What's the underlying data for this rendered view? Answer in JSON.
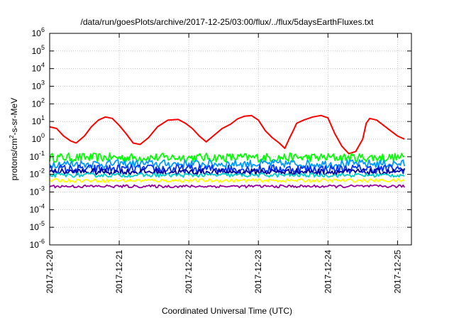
{
  "chart_data": {
    "type": "line",
    "title": "/data/run/goesPlots/archive/2017-12-25/03:00/flux/../flux/5daysEarthFluxes.txt",
    "xlabel": "Coordinated Universal Time (UTC)",
    "ylabel": {
      "pre": "protons/cm",
      "sup": "2",
      "post": "-s-sr-MeV"
    },
    "yscale": "log",
    "ylim": [
      1e-06,
      1000000.0
    ],
    "xlim_days": [
      0,
      5.2
    ],
    "grid": true,
    "y_ticks": [
      {
        "base": "10",
        "exp": "6"
      },
      {
        "base": "10",
        "exp": "5"
      },
      {
        "base": "10",
        "exp": "4"
      },
      {
        "base": "10",
        "exp": "3"
      },
      {
        "base": "10",
        "exp": "2"
      },
      {
        "base": "10",
        "exp": "1"
      },
      {
        "base": "10",
        "exp": "0"
      },
      {
        "base": "10",
        "exp": "-1"
      },
      {
        "base": "10",
        "exp": "-2"
      },
      {
        "base": "10",
        "exp": "-3"
      },
      {
        "base": "10",
        "exp": "-4"
      },
      {
        "base": "10",
        "exp": "-5"
      },
      {
        "base": "10",
        "exp": "-6"
      }
    ],
    "x_ticks": [
      "2017-12-20",
      "2017-12-21",
      "2017-12-22",
      "2017-12-23",
      "2017-12-24",
      "2017-12-25"
    ],
    "series": [
      {
        "color": "#ff0000",
        "points": [
          [
            0,
            5
          ],
          [
            0.1,
            4
          ],
          [
            0.2,
            1.5
          ],
          [
            0.3,
            0.8
          ],
          [
            0.38,
            0.6
          ],
          [
            0.5,
            1.5
          ],
          [
            0.6,
            5
          ],
          [
            0.7,
            12
          ],
          [
            0.8,
            18
          ],
          [
            0.9,
            15
          ],
          [
            1.0,
            6
          ],
          [
            1.1,
            2
          ],
          [
            1.2,
            0.6
          ],
          [
            1.3,
            0.5
          ],
          [
            1.42,
            1.2
          ],
          [
            1.55,
            5
          ],
          [
            1.7,
            12
          ],
          [
            1.85,
            13
          ],
          [
            1.95,
            8
          ],
          [
            2.05,
            4
          ],
          [
            2.15,
            1.5
          ],
          [
            2.25,
            0.7
          ],
          [
            2.35,
            1.5
          ],
          [
            2.48,
            4
          ],
          [
            2.6,
            7
          ],
          [
            2.7,
            14
          ],
          [
            2.8,
            20
          ],
          [
            2.9,
            22
          ],
          [
            3.0,
            12
          ],
          [
            3.1,
            3
          ],
          [
            3.2,
            1.2
          ],
          [
            3.3,
            0.6
          ],
          [
            3.38,
            0.3
          ],
          [
            3.45,
            1.2
          ],
          [
            3.5,
            3
          ],
          [
            3.55,
            8
          ],
          [
            3.65,
            12
          ],
          [
            3.78,
            18
          ],
          [
            3.9,
            22
          ],
          [
            4.0,
            16
          ],
          [
            4.1,
            2
          ],
          [
            4.2,
            0.4
          ],
          [
            4.3,
            0.15
          ],
          [
            4.4,
            0.2
          ],
          [
            4.5,
            1.0
          ],
          [
            4.55,
            8
          ],
          [
            4.6,
            15
          ],
          [
            4.7,
            12
          ],
          [
            4.8,
            6
          ],
          [
            4.9,
            3
          ],
          [
            5.0,
            1.5
          ],
          [
            5.1,
            1.0
          ]
        ]
      },
      {
        "color": "#00ff00",
        "base": 0.09,
        "amp": 1.8
      },
      {
        "color": "#0099ff",
        "base": 0.04,
        "amp": 1.7
      },
      {
        "color": "#0033ff",
        "base": 0.02,
        "amp": 1.8
      },
      {
        "color": "#000099",
        "base": 0.014,
        "amp": 1.5
      },
      {
        "color": "#00cccc",
        "base": 0.009,
        "amp": 1.3
      },
      {
        "color": "#ffff00",
        "base": 0.0045,
        "amp": 1.25
      },
      {
        "color": "#990099",
        "base": 0.0021,
        "amp": 1.2
      }
    ]
  }
}
